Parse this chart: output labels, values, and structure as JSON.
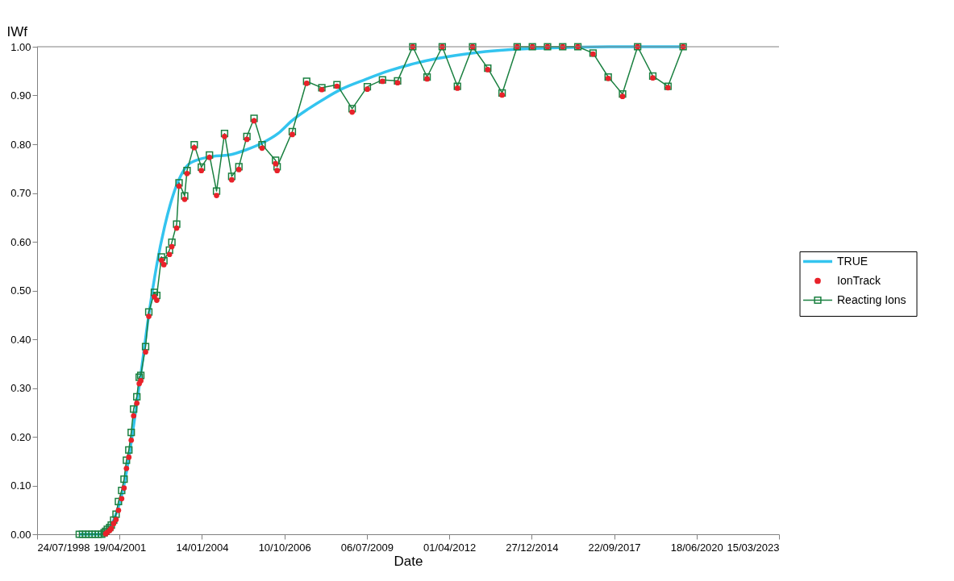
{
  "chart_data": {
    "type": "line",
    "xlabel": "Date",
    "ylabel": "IWf",
    "xlim": [
      "1998-07-24",
      "2023-03-15"
    ],
    "xticks": [
      {
        "value": "1998-07-24",
        "label": "24/07/1998"
      },
      {
        "value": "2001-04-19",
        "label": "19/04/2001"
      },
      {
        "value": "2004-01-14",
        "label": "14/01/2004"
      },
      {
        "value": "2006-10-10",
        "label": "10/10/2006"
      },
      {
        "value": "2009-07-06",
        "label": "06/07/2009"
      },
      {
        "value": "2012-04-01",
        "label": "01/04/2012"
      },
      {
        "value": "2014-12-27",
        "label": "27/12/2014"
      },
      {
        "value": "2017-09-22",
        "label": "22/09/2017"
      },
      {
        "value": "2020-06-18",
        "label": "18/06/2020"
      },
      {
        "value": "2023-03-15",
        "label": "15/03/2023"
      }
    ],
    "ylim": [
      0,
      1
    ],
    "yticks": [
      {
        "value": 0,
        "label": "0.00"
      },
      {
        "value": 0.1,
        "label": "0.10"
      },
      {
        "value": 0.2,
        "label": "0.20"
      },
      {
        "value": 0.3,
        "label": "0.30"
      },
      {
        "value": 0.4,
        "label": "0.40"
      },
      {
        "value": 0.5,
        "label": "0.50"
      },
      {
        "value": 0.6,
        "label": "0.60"
      },
      {
        "value": 0.7,
        "label": "0.70"
      },
      {
        "value": 0.8,
        "label": "0.80"
      },
      {
        "value": 0.9,
        "label": "0.90"
      },
      {
        "value": 1,
        "label": "1.00"
      }
    ],
    "grid": false,
    "legend": "right",
    "x": [
      "1999-12-18",
      "2000-01-26",
      "2000-03-06",
      "2000-04-14",
      "2000-05-22",
      "2000-06-29",
      "2000-08-07",
      "2000-09-15",
      "2000-10-14",
      "2000-11-02",
      "2000-11-22",
      "2000-12-21",
      "2001-01-09",
      "2001-02-07",
      "2001-03-08",
      "2001-04-06",
      "2001-05-15",
      "2001-06-13",
      "2001-07-12",
      "2001-08-10",
      "2001-09-08",
      "2001-10-07",
      "2001-11-15",
      "2001-12-14",
      "2002-01-02",
      "2002-03-01",
      "2002-04-09",
      "2002-06-16",
      "2002-07-15",
      "2002-09-10",
      "2002-10-09",
      "2002-12-16",
      "2003-01-14",
      "2003-03-13",
      "2003-04-11",
      "2003-06-18",
      "2003-07-17",
      "2003-10-12",
      "2004-01-07",
      "2004-04-14",
      "2004-07-09",
      "2004-10-14",
      "2005-01-09",
      "2005-04-06",
      "2005-07-12",
      "2005-10-07",
      "2006-01-12",
      "2006-06-25",
      "2006-07-14",
      "2007-01-14",
      "2007-07-07",
      "2008-01-07",
      "2008-07-09",
      "2009-01-09",
      "2009-07-12",
      "2010-01-12",
      "2010-07-14",
      "2011-01-14",
      "2011-07-07",
      "2012-01-07",
      "2012-07-09",
      "2013-01-09",
      "2013-07-12",
      "2014-01-02",
      "2014-07-04",
      "2015-01-04",
      "2015-07-07",
      "2016-01-07",
      "2016-07-09",
      "2017-01-09",
      "2017-07-12",
      "2018-01-02",
      "2018-07-04",
      "2019-01-04",
      "2019-07-07",
      "2020-01-07"
    ],
    "series": [
      {
        "name": "TRUE",
        "color": "#33c4ef",
        "marker": "none",
        "x": [
          "1999-12-18",
          "2000-09-05",
          "2000-12-11",
          "2001-03-17",
          "2001-06-22",
          "2001-09-28",
          "2002-01-02",
          "2002-04-09",
          "2002-07-15",
          "2002-10-19",
          "2003-01-24",
          "2003-05-01",
          "2003-08-06",
          "2003-12-30",
          "2004-05-24",
          "2004-12-08",
          "2005-06-24",
          "2006-01-08",
          "2006-07-25",
          "2007-01-14",
          "2007-07-31",
          "2008-02-14",
          "2008-08-31",
          "2009-06-19",
          "2010-04-06",
          "2011-01-21",
          "2011-11-08",
          "2012-08-26",
          "2013-06-13",
          "2014-07-02",
          "2015-11-06",
          "2017-07-21",
          "2020-01-07"
        ],
        "values": [
          0,
          0,
          0.011,
          0.046,
          0.109,
          0.212,
          0.328,
          0.45,
          0.553,
          0.632,
          0.693,
          0.735,
          0.759,
          0.77,
          0.775,
          0.778,
          0.788,
          0.802,
          0.822,
          0.849,
          0.873,
          0.894,
          0.913,
          0.933,
          0.951,
          0.965,
          0.976,
          0.984,
          0.99,
          0.995,
          0.998,
          1,
          1
        ]
      },
      {
        "name": "IonTrack",
        "type": "scatter",
        "color": "#e8222a",
        "marker": "circle",
        "values": [
          null,
          null,
          null,
          null,
          null,
          null,
          null,
          null,
          null,
          0.001,
          0.004,
          0.008,
          0.012,
          0.022,
          0.03,
          0.049,
          0.073,
          0.095,
          0.135,
          0.158,
          0.193,
          0.243,
          0.269,
          0.309,
          0.315,
          0.374,
          0.447,
          0.487,
          0.48,
          0.562,
          0.553,
          0.574,
          0.59,
          0.628,
          0.714,
          0.687,
          0.74,
          0.793,
          0.746,
          0.773,
          0.695,
          0.816,
          0.727,
          0.748,
          0.81,
          0.848,
          0.792,
          0.76,
          0.746,
          0.82,
          0.925,
          0.912,
          0.919,
          0.866,
          0.913,
          0.929,
          0.926,
          1,
          0.934,
          1,
          0.915,
          1,
          0.953,
          0.901,
          1,
          1,
          1,
          1,
          1,
          0.985,
          0.935,
          0.898,
          1,
          0.936,
          0.916,
          1
        ]
      },
      {
        "name": "Reacting Ions",
        "color": "#1a8040",
        "marker": "square",
        "values": [
          0,
          0,
          0,
          0,
          0,
          0,
          0,
          0,
          0.003,
          0.006,
          0.01,
          0.014,
          0.019,
          0.029,
          0.041,
          0.067,
          0.09,
          0.113,
          0.152,
          0.173,
          0.209,
          0.257,
          0.282,
          0.322,
          0.326,
          0.385,
          0.456,
          0.496,
          0.49,
          0.569,
          0.561,
          0.583,
          0.599,
          0.636,
          0.721,
          0.694,
          0.746,
          0.799,
          0.753,
          0.778,
          0.704,
          0.822,
          0.734,
          0.754,
          0.816,
          0.853,
          0.799,
          0.767,
          0.754,
          0.826,
          0.929,
          0.916,
          0.922,
          0.873,
          0.918,
          0.932,
          0.93,
          1,
          0.938,
          1,
          0.919,
          1,
          0.956,
          0.905,
          1,
          1,
          1,
          1,
          1,
          0.987,
          0.938,
          0.903,
          1,
          0.94,
          0.919,
          1
        ]
      }
    ]
  }
}
